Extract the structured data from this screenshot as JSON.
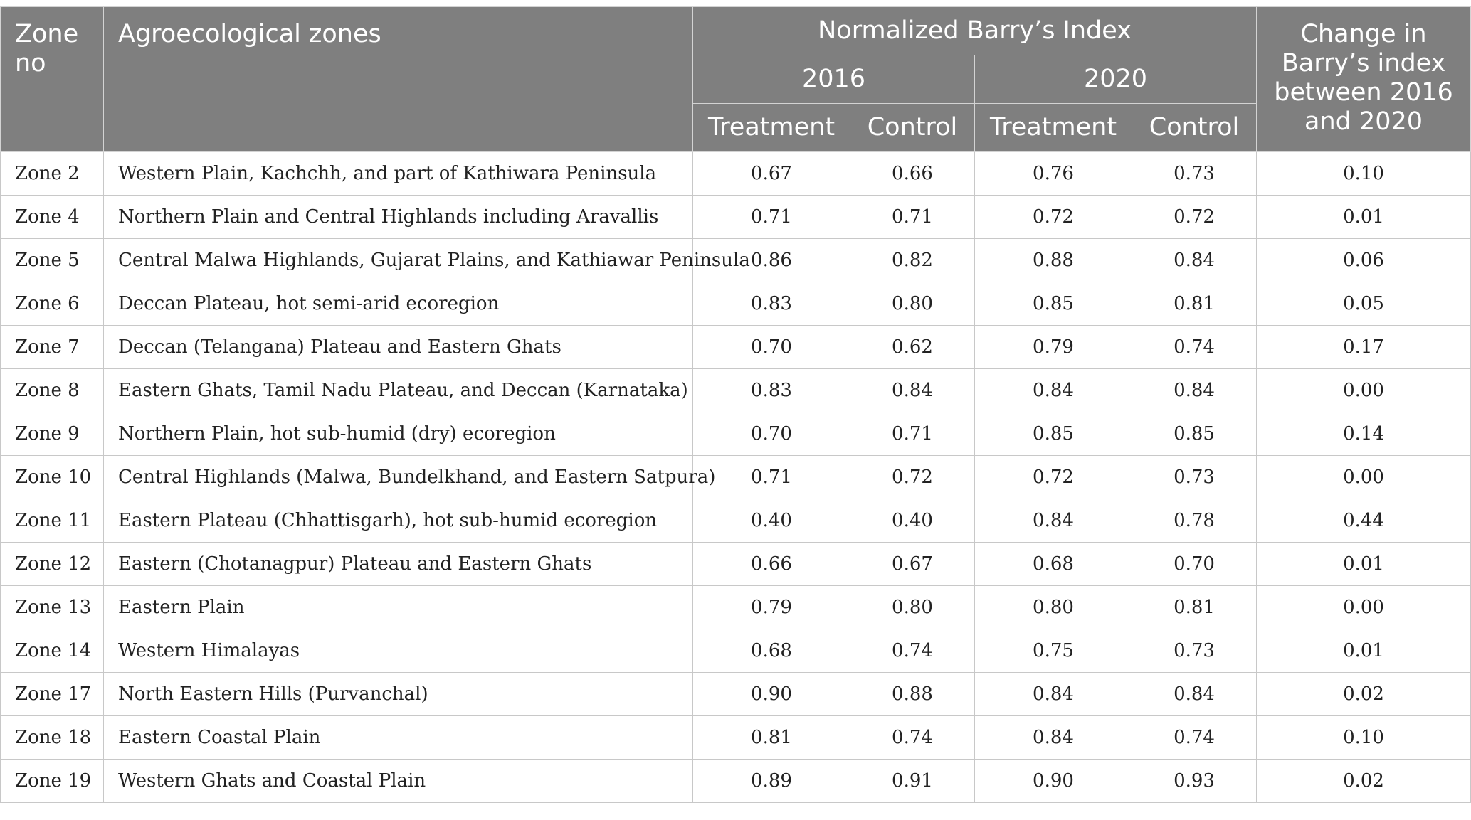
{
  "table": {
    "headers": {
      "zone_no": "Zone no",
      "agro_zones": "Agroecological zones",
      "normalized": "Normalized Barry’s Index",
      "year_2016": "2016",
      "year_2020": "2020",
      "treatment": "Treatment",
      "control": "Control",
      "change": "Change in Barry’s index between 2016 and 2020"
    },
    "rows": [
      {
        "zone": "Zone 2",
        "name": "Western Plain, Kachchh, and part of Kathiwara Peninsula",
        "t2016": "0.67",
        "c2016": "0.66",
        "t2020": "0.76",
        "c2020": "0.73",
        "change": "0.10"
      },
      {
        "zone": "Zone 4",
        "name": "Northern Plain and Central Highlands including Aravallis",
        "t2016": "0.71",
        "c2016": "0.71",
        "t2020": "0.72",
        "c2020": "0.72",
        "change": "0.01"
      },
      {
        "zone": "Zone 5",
        "name": "Central Malwa Highlands, Gujarat Plains, and Kathiawar Peninsula",
        "t2016": "0.86",
        "c2016": "0.82",
        "t2020": "0.88",
        "c2020": "0.84",
        "change": "0.06"
      },
      {
        "zone": "Zone 6",
        "name": "Deccan Plateau, hot semi-arid ecoregion",
        "t2016": "0.83",
        "c2016": "0.80",
        "t2020": "0.85",
        "c2020": "0.81",
        "change": "0.05"
      },
      {
        "zone": "Zone 7",
        "name": "Deccan (Telangana) Plateau and Eastern Ghats",
        "t2016": "0.70",
        "c2016": "0.62",
        "t2020": "0.79",
        "c2020": "0.74",
        "change": "0.17"
      },
      {
        "zone": "Zone 8",
        "name": "Eastern Ghats, Tamil Nadu Plateau, and Deccan (Karnataka)",
        "t2016": "0.83",
        "c2016": "0.84",
        "t2020": "0.84",
        "c2020": "0.84",
        "change": "0.00"
      },
      {
        "zone": "Zone 9",
        "name": "Northern Plain, hot sub-humid (dry) ecoregion",
        "t2016": "0.70",
        "c2016": "0.71",
        "t2020": "0.85",
        "c2020": "0.85",
        "change": "0.14"
      },
      {
        "zone": "Zone 10",
        "name": "Central Highlands (Malwa, Bundelkhand, and Eastern Satpura)",
        "t2016": "0.71",
        "c2016": "0.72",
        "t2020": "0.72",
        "c2020": "0.73",
        "change": "0.00"
      },
      {
        "zone": "Zone 11",
        "name": "Eastern Plateau (Chhattisgarh), hot sub-humid ecoregion",
        "t2016": "0.40",
        "c2016": "0.40",
        "t2020": "0.84",
        "c2020": "0.78",
        "change": "0.44"
      },
      {
        "zone": "Zone 12",
        "name": "Eastern (Chotanagpur) Plateau and Eastern Ghats",
        "t2016": "0.66",
        "c2016": "0.67",
        "t2020": "0.68",
        "c2020": "0.70",
        "change": "0.01"
      },
      {
        "zone": "Zone 13",
        "name": "Eastern Plain",
        "t2016": "0.79",
        "c2016": "0.80",
        "t2020": "0.80",
        "c2020": "0.81",
        "change": "0.00"
      },
      {
        "zone": "Zone 14",
        "name": "Western Himalayas",
        "t2016": "0.68",
        "c2016": "0.74",
        "t2020": "0.75",
        "c2020": "0.73",
        "change": "0.01"
      },
      {
        "zone": "Zone 17",
        "name": "North Eastern Hills (Purvanchal)",
        "t2016": "0.90",
        "c2016": "0.88",
        "t2020": "0.84",
        "c2020": "0.84",
        "change": "0.02"
      },
      {
        "zone": "Zone 18",
        "name": "Eastern Coastal Plain",
        "t2016": "0.81",
        "c2016": "0.74",
        "t2020": "0.84",
        "c2020": "0.74",
        "change": "0.10"
      },
      {
        "zone": "Zone 19",
        "name": "Western Ghats and Coastal Plain",
        "t2016": "0.89",
        "c2016": "0.91",
        "t2020": "0.90",
        "c2020": "0.93",
        "change": "0.02"
      }
    ]
  }
}
